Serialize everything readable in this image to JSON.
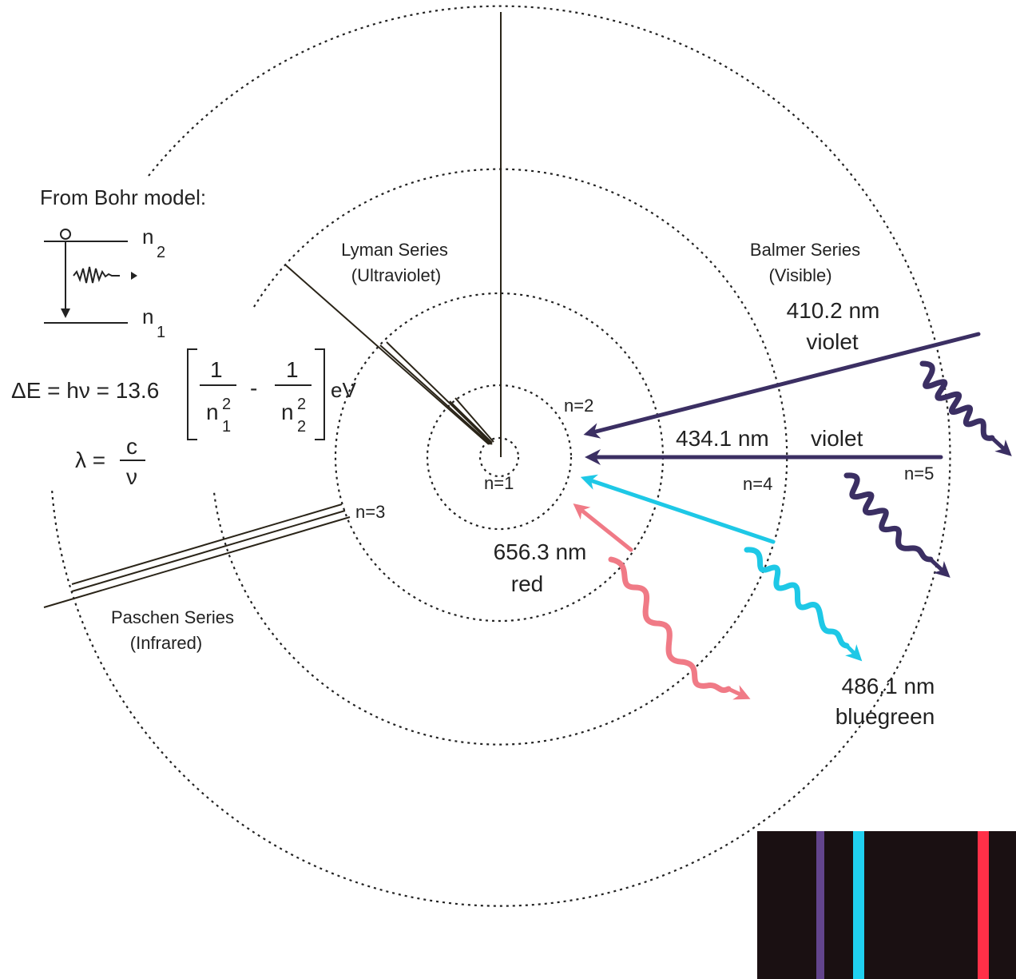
{
  "orbits": [
    "n=1",
    "n=2",
    "n=3",
    "n=4",
    "n=5"
  ],
  "series": {
    "lyman": {
      "name": "Lyman Series",
      "band": "(Ultraviolet)"
    },
    "balmer": {
      "name": "Balmer Series",
      "band": "(Visible)"
    },
    "paschen": {
      "name": "Paschen Series",
      "band": "(Infrared)"
    }
  },
  "lines": [
    {
      "wavelength": "410.2 nm",
      "color_name": "violet",
      "color": "#3b2f63"
    },
    {
      "wavelength": "434.1 nm",
      "color_name": "violet",
      "color": "#3b2f63"
    },
    {
      "wavelength": "486.1 nm",
      "color_name": "bluegreen",
      "color": "#1ec8e6"
    },
    {
      "wavelength": "656.3 nm",
      "color_name": "red",
      "color": "#f07a86"
    }
  ],
  "bohr_box": {
    "title": "From Bohr model:",
    "n_upper": "n",
    "n_upper_sub": "2",
    "n_lower": "n",
    "n_lower_sub": "1"
  },
  "equation": {
    "lhs": "ΔE = hν = 13.6",
    "one": "1",
    "n": "n",
    "sq": "2",
    "sub1": "1",
    "sub2": "2",
    "minus": "-",
    "unit": "eV",
    "lambda": "λ =",
    "c": "c",
    "nu": "ν"
  },
  "spectrum": {
    "background": "#1a1012",
    "bands": [
      {
        "name": "violet",
        "color": "#6a4a9a"
      },
      {
        "name": "bluegreen",
        "color": "#20d0f0"
      },
      {
        "name": "red",
        "color": "#ff3048"
      }
    ]
  }
}
